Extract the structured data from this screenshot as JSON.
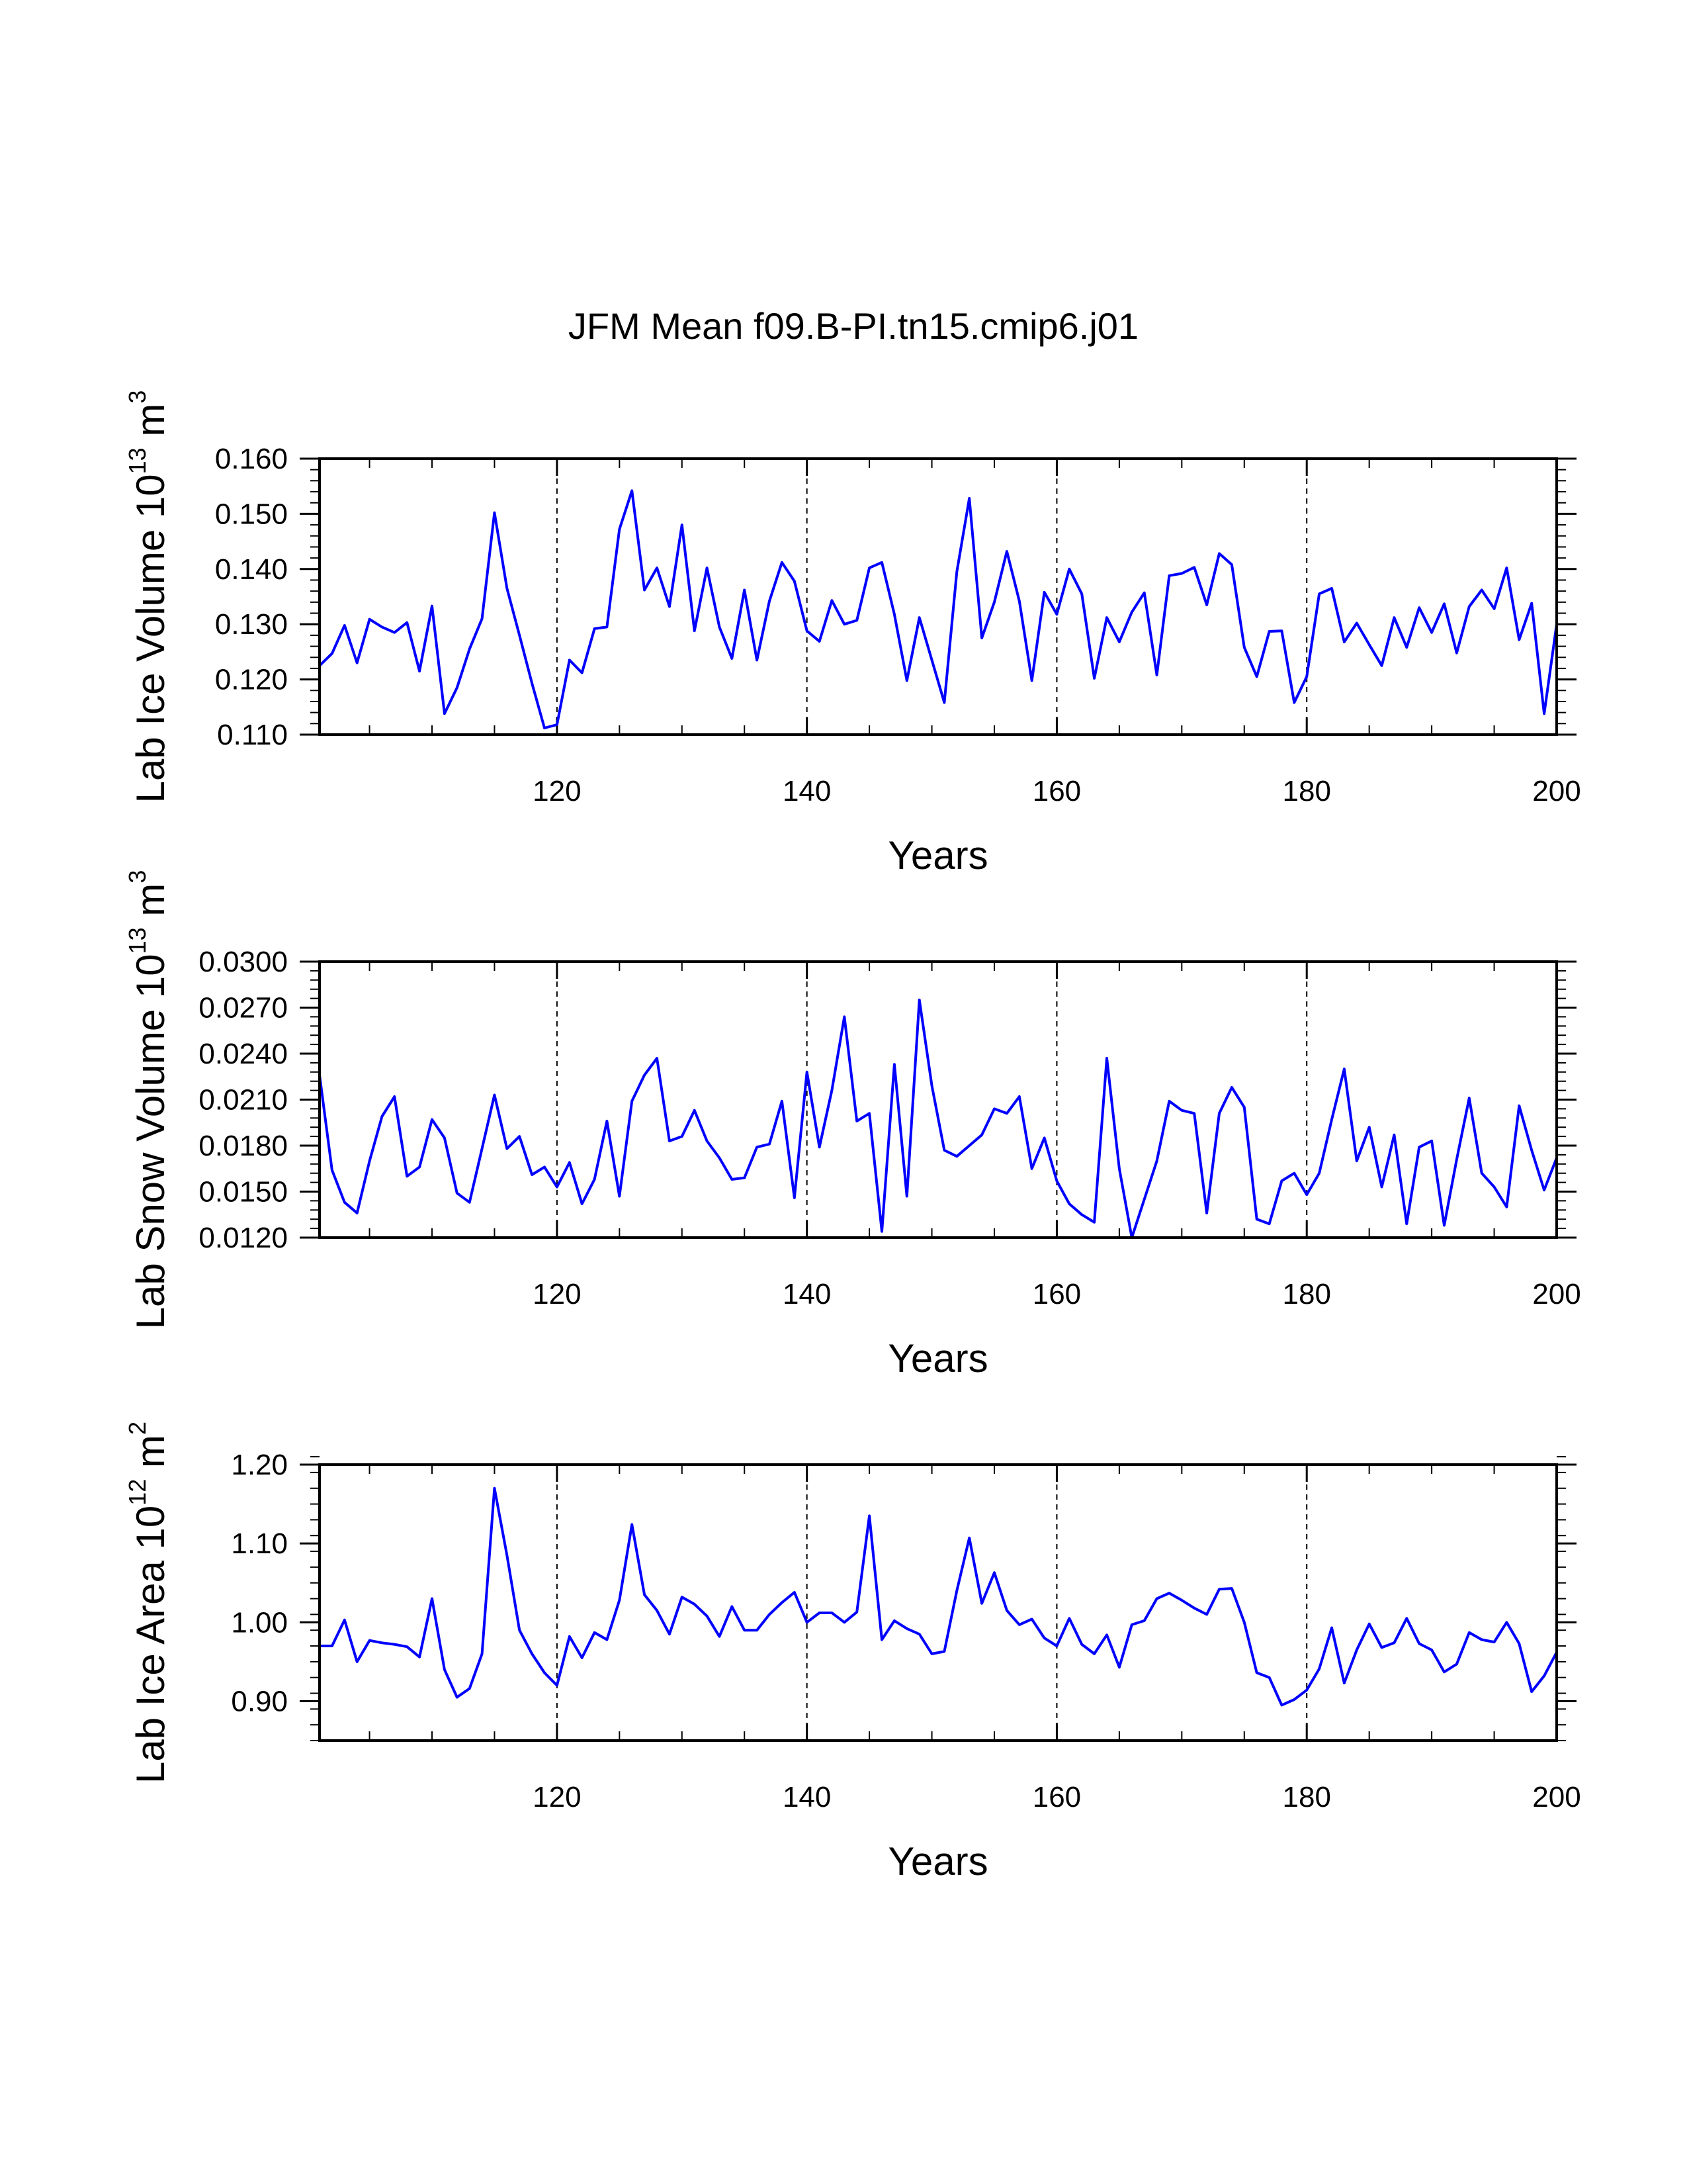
{
  "page_title": "JFM Mean f09.B-PI.tn15.cmip6.j01",
  "colors": {
    "series": "#0000ff",
    "axes": "#000000",
    "background": "#ffffff"
  },
  "chart_data": [
    {
      "type": "line",
      "ylabel": {
        "main": "Lab Ice Volume 10",
        "exponent": "13",
        "unit": " m",
        "unit_exponent": "3"
      },
      "xlabel": "Years",
      "xlim": [
        101,
        200
      ],
      "ylim": [
        0.11,
        0.16
      ],
      "xticks": [
        120,
        140,
        160,
        180,
        200
      ],
      "xtick_labels": [
        "120",
        "140",
        "160",
        "180",
        "200"
      ],
      "yticks": [
        0.11,
        0.12,
        0.13,
        0.14,
        0.15,
        0.16
      ],
      "ytick_labels": [
        "0.110",
        "0.120",
        "0.130",
        "0.140",
        "0.150",
        "0.160"
      ],
      "ystep": 0.01,
      "grid_x": [
        120,
        140,
        160,
        180
      ],
      "x": [
        101,
        102,
        103,
        104,
        105,
        106,
        107,
        108,
        109,
        110,
        111,
        112,
        113,
        114,
        115,
        116,
        117,
        118,
        119,
        120,
        121,
        122,
        123,
        124,
        125,
        126,
        127,
        128,
        129,
        130,
        131,
        132,
        133,
        134,
        135,
        136,
        137,
        138,
        139,
        140,
        141,
        142,
        143,
        144,
        145,
        146,
        147,
        148,
        149,
        150,
        151,
        152,
        153,
        154,
        155,
        156,
        157,
        158,
        159,
        160,
        161,
        162,
        163,
        164,
        165,
        166,
        167,
        168,
        169,
        170,
        171,
        172,
        173,
        174,
        175,
        176,
        177,
        178,
        179,
        180,
        181,
        182,
        183,
        184,
        185,
        186,
        187,
        188,
        189,
        190,
        191,
        192,
        193,
        194,
        195,
        196,
        197,
        198,
        199,
        200
      ],
      "values": [
        0.1225,
        0.1247,
        0.1298,
        0.123,
        0.1309,
        0.1295,
        0.1285,
        0.1303,
        0.1215,
        0.1333,
        0.1138,
        0.1185,
        0.1255,
        0.131,
        0.1502,
        0.1365,
        0.128,
        0.1193,
        0.1112,
        0.1118,
        0.1235,
        0.1212,
        0.1292,
        0.1295,
        0.1472,
        0.1542,
        0.1362,
        0.1402,
        0.1332,
        0.148,
        0.1288,
        0.1402,
        0.1295,
        0.1238,
        0.1362,
        0.1235,
        0.1342,
        0.1412,
        0.1378,
        0.1288,
        0.1269,
        0.1343,
        0.13,
        0.1307,
        0.1402,
        0.1412,
        0.1318,
        0.1198,
        0.1312,
        0.1235,
        0.1158,
        0.1395,
        0.1528,
        0.1275,
        0.134,
        0.1432,
        0.1342,
        0.1198,
        0.1358,
        0.1318,
        0.14,
        0.1355,
        0.1202,
        0.1312,
        0.1268,
        0.1322,
        0.1357,
        0.1208,
        0.1388,
        0.1392,
        0.1403,
        0.1335,
        0.1428,
        0.1408,
        0.1258,
        0.1205,
        0.1287,
        0.1288,
        0.1158,
        0.1205,
        0.1355,
        0.1365,
        0.1268,
        0.1302,
        0.1263,
        0.1225,
        0.1312,
        0.1258,
        0.133,
        0.1285,
        0.1337,
        0.1248,
        0.1332,
        0.1362,
        0.1328,
        0.1402,
        0.1272,
        0.1338,
        0.1138,
        0.13
      ]
    },
    {
      "type": "line",
      "ylabel": {
        "main": "Lab Snow Volume 10",
        "exponent": "13",
        "unit": " m",
        "unit_exponent": "3"
      },
      "xlabel": "Years",
      "xlim": [
        101,
        200
      ],
      "ylim": [
        0.012,
        0.03
      ],
      "xticks": [
        120,
        140,
        160,
        180,
        200
      ],
      "xtick_labels": [
        "120",
        "140",
        "160",
        "180",
        "200"
      ],
      "yticks": [
        0.012,
        0.015,
        0.018,
        0.021,
        0.024,
        0.027,
        0.03
      ],
      "ytick_labels": [
        "0.0120",
        "0.0150",
        "0.0180",
        "0.0210",
        "0.0240",
        "0.0270",
        "0.0300"
      ],
      "ystep": 0.003,
      "grid_x": [
        120,
        140,
        160,
        180
      ],
      "x": [
        101,
        102,
        103,
        104,
        105,
        106,
        107,
        108,
        109,
        110,
        111,
        112,
        113,
        114,
        115,
        116,
        117,
        118,
        119,
        120,
        121,
        122,
        123,
        124,
        125,
        126,
        127,
        128,
        129,
        130,
        131,
        132,
        133,
        134,
        135,
        136,
        137,
        138,
        139,
        140,
        141,
        142,
        143,
        144,
        145,
        146,
        147,
        148,
        149,
        150,
        151,
        152,
        153,
        154,
        155,
        156,
        157,
        158,
        159,
        160,
        161,
        162,
        163,
        164,
        165,
        166,
        167,
        168,
        169,
        170,
        171,
        172,
        173,
        174,
        175,
        176,
        177,
        178,
        179,
        180,
        181,
        182,
        183,
        184,
        185,
        186,
        187,
        188,
        189,
        190,
        191,
        192,
        193,
        194,
        195,
        196,
        197,
        198,
        199,
        200
      ],
      "values": [
        0.0226,
        0.0164,
        0.0143,
        0.0136,
        0.017,
        0.0199,
        0.0212,
        0.016,
        0.0166,
        0.0197,
        0.0185,
        0.0149,
        0.0143,
        0.0178,
        0.0213,
        0.0178,
        0.0186,
        0.0161,
        0.0166,
        0.0153,
        0.0169,
        0.0142,
        0.0158,
        0.0196,
        0.0147,
        0.0209,
        0.0226,
        0.0237,
        0.0183,
        0.0186,
        0.0203,
        0.0183,
        0.0172,
        0.0158,
        0.0159,
        0.0179,
        0.0181,
        0.0209,
        0.0146,
        0.0228,
        0.0179,
        0.0216,
        0.0264,
        0.0196,
        0.0201,
        0.0124,
        0.0233,
        0.0147,
        0.0275,
        0.0219,
        0.0177,
        0.0173,
        0.018,
        0.0187,
        0.0204,
        0.0201,
        0.0212,
        0.0165,
        0.0185,
        0.0157,
        0.0142,
        0.0135,
        0.013,
        0.0237,
        0.0165,
        0.012,
        0.0145,
        0.017,
        0.0209,
        0.0203,
        0.0201,
        0.0136,
        0.0201,
        0.0218,
        0.0205,
        0.0132,
        0.0129,
        0.0157,
        0.0162,
        0.0148,
        0.0162,
        0.0197,
        0.023,
        0.017,
        0.0192,
        0.0153,
        0.0187,
        0.0129,
        0.0179,
        0.0183,
        0.0128,
        0.0171,
        0.0211,
        0.0162,
        0.0153,
        0.014,
        0.0206,
        0.0177,
        0.0151,
        0.0172
      ]
    },
    {
      "type": "line",
      "ylabel": {
        "main": "Lab Ice Area 10",
        "exponent": "12",
        "unit": " m",
        "unit_exponent": "2"
      },
      "xlabel": "Years",
      "xlim": [
        101,
        200
      ],
      "ylim": [
        0.85,
        1.2
      ],
      "xticks": [
        120,
        140,
        160,
        180,
        200
      ],
      "xtick_labels": [
        "120",
        "140",
        "160",
        "180",
        "200"
      ],
      "yticks": [
        0.9,
        1.0,
        1.1,
        1.2
      ],
      "ytick_labels": [
        "0.90",
        "1.00",
        "1.10",
        "1.20"
      ],
      "ystep": 0.1,
      "grid_x": [
        120,
        140,
        160,
        180
      ],
      "x": [
        101,
        102,
        103,
        104,
        105,
        106,
        107,
        108,
        109,
        110,
        111,
        112,
        113,
        114,
        115,
        116,
        117,
        118,
        119,
        120,
        121,
        122,
        123,
        124,
        125,
        126,
        127,
        128,
        129,
        130,
        131,
        132,
        133,
        134,
        135,
        136,
        137,
        138,
        139,
        140,
        141,
        142,
        143,
        144,
        145,
        146,
        147,
        148,
        149,
        150,
        151,
        152,
        153,
        154,
        155,
        156,
        157,
        158,
        159,
        160,
        161,
        162,
        163,
        164,
        165,
        166,
        167,
        168,
        169,
        170,
        171,
        172,
        173,
        174,
        175,
        176,
        177,
        178,
        179,
        180,
        181,
        182,
        183,
        184,
        185,
        186,
        187,
        188,
        189,
        190,
        191,
        192,
        193,
        194,
        195,
        196,
        197,
        198,
        199,
        200
      ],
      "values": [
        0.97,
        0.97,
        1.003,
        0.95,
        0.977,
        0.974,
        0.972,
        0.969,
        0.956,
        1.03,
        0.94,
        0.905,
        0.916,
        0.96,
        1.17,
        1.085,
        0.99,
        0.96,
        0.936,
        0.92,
        0.982,
        0.955,
        0.987,
        0.978,
        1.028,
        1.124,
        1.035,
        1.015,
        0.985,
        1.032,
        1.023,
        1.008,
        0.982,
        1.02,
        0.99,
        0.99,
        1.01,
        1.025,
        1.038,
        1.0,
        1.012,
        1.012,
        1.0,
        1.013,
        1.135,
        0.978,
        1.002,
        0.992,
        0.985,
        0.96,
        0.963,
        1.04,
        1.107,
        1.024,
        1.063,
        1.015,
        0.997,
        1.004,
        0.98,
        0.97,
        1.005,
        0.972,
        0.96,
        0.984,
        0.943,
        0.997,
        1.002,
        1.03,
        1.037,
        1.028,
        1.018,
        1.01,
        1.042,
        1.043,
        1.0,
        0.936,
        0.93,
        0.895,
        0.902,
        0.914,
        0.941,
        0.993,
        0.923,
        0.965,
        0.998,
        0.968,
        0.974,
        1.005,
        0.973,
        0.965,
        0.937,
        0.947,
        0.987,
        0.978,
        0.975,
        1.0,
        0.973,
        0.912,
        0.932,
        0.962
      ]
    }
  ]
}
